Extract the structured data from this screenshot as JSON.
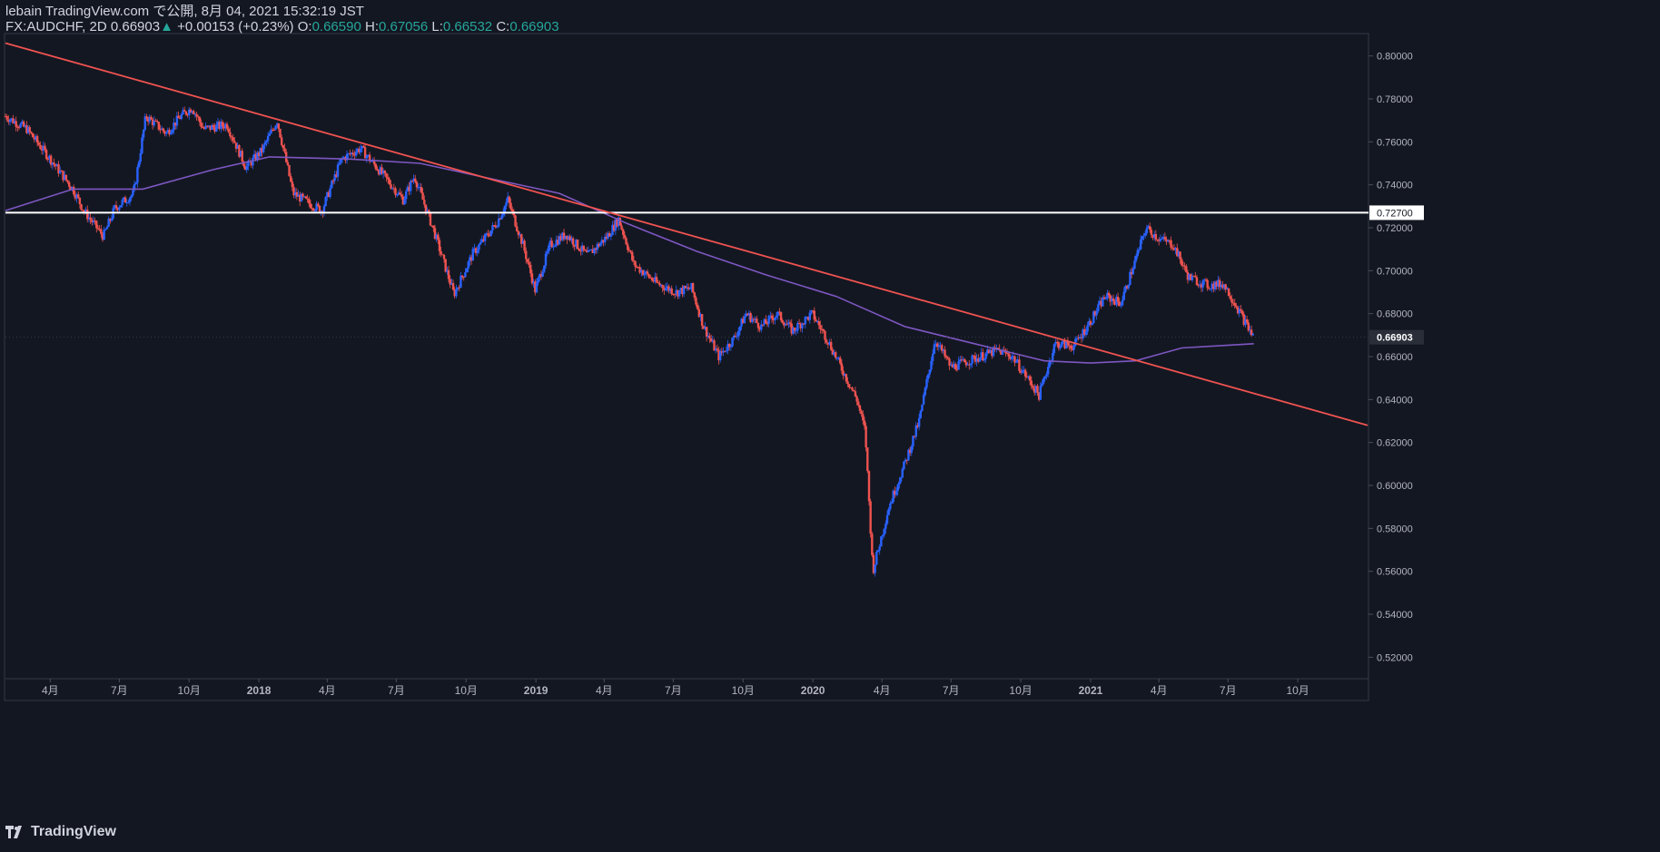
{
  "header": {
    "publisher": "lebain TradingView.com で公開, 8月 04, 2021 15:32:19 JST",
    "symbol": "FX:AUDCHF, 2D",
    "last": "0.66903",
    "change": "+0.00153 (+0.23%)",
    "o_label": "O:",
    "o": "0.66590",
    "h_label": "H:",
    "h": "0.67056",
    "l_label": "L:",
    "l": "0.66532",
    "c_label": "C:",
    "c": "0.66903",
    "up_color": "#26a69a"
  },
  "footer": {
    "brand": "TradingView",
    "icon": "tradingview-logo-icon"
  },
  "chart_data": {
    "type": "candlestick",
    "symbol": "FX:AUDCHF",
    "interval": "2D",
    "ylim": [
      0.51,
      0.81
    ],
    "x_range": [
      "2017-02-01",
      "2022-01-01"
    ],
    "y_ticks": [
      "0.80000",
      "0.78000",
      "0.76000",
      "0.74000",
      "0.72000",
      "0.70000",
      "0.68000",
      "0.66000",
      "0.64000",
      "0.62000",
      "0.60000",
      "0.58000",
      "0.56000",
      "0.54000",
      "0.52000"
    ],
    "x_ticks": [
      {
        "date": "2017-04-01",
        "label": "4月"
      },
      {
        "date": "2017-07-01",
        "label": "7月"
      },
      {
        "date": "2017-10-01",
        "label": "10月"
      },
      {
        "date": "2018-01-01",
        "label": "2018"
      },
      {
        "date": "2018-04-01",
        "label": "4月"
      },
      {
        "date": "2018-07-01",
        "label": "7月"
      },
      {
        "date": "2018-10-01",
        "label": "10月"
      },
      {
        "date": "2019-01-01",
        "label": "2019"
      },
      {
        "date": "2019-04-01",
        "label": "4月"
      },
      {
        "date": "2019-07-01",
        "label": "7月"
      },
      {
        "date": "2019-10-01",
        "label": "10月"
      },
      {
        "date": "2020-01-01",
        "label": "2020"
      },
      {
        "date": "2020-04-01",
        "label": "4月"
      },
      {
        "date": "2020-07-01",
        "label": "7月"
      },
      {
        "date": "2020-10-01",
        "label": "10月"
      },
      {
        "date": "2021-01-01",
        "label": "2021"
      },
      {
        "date": "2021-04-01",
        "label": "4月"
      },
      {
        "date": "2021-07-01",
        "label": "7月"
      },
      {
        "date": "2021-10-01",
        "label": "10月"
      }
    ],
    "close_path": [
      [
        "2017-02-01",
        0.772
      ],
      [
        "2017-03-01",
        0.766
      ],
      [
        "2017-04-01",
        0.752
      ],
      [
        "2017-05-01",
        0.738
      ],
      [
        "2017-05-15",
        0.728
      ],
      [
        "2017-06-10",
        0.716
      ],
      [
        "2017-06-25",
        0.729
      ],
      [
        "2017-07-20",
        0.736
      ],
      [
        "2017-08-05",
        0.772
      ],
      [
        "2017-09-01",
        0.764
      ],
      [
        "2017-09-20",
        0.772
      ],
      [
        "2017-10-05",
        0.776
      ],
      [
        "2017-10-20",
        0.766
      ],
      [
        "2017-11-20",
        0.768
      ],
      [
        "2017-12-15",
        0.748
      ],
      [
        "2018-01-05",
        0.756
      ],
      [
        "2018-01-25",
        0.77
      ],
      [
        "2018-02-15",
        0.736
      ],
      [
        "2018-03-10",
        0.731
      ],
      [
        "2018-03-25",
        0.728
      ],
      [
        "2018-04-20",
        0.752
      ],
      [
        "2018-05-15",
        0.757
      ],
      [
        "2018-06-15",
        0.744
      ],
      [
        "2018-07-10",
        0.733
      ],
      [
        "2018-07-25",
        0.744
      ],
      [
        "2018-08-20",
        0.718
      ],
      [
        "2018-09-15",
        0.689
      ],
      [
        "2018-10-10",
        0.708
      ],
      [
        "2018-11-10",
        0.722
      ],
      [
        "2018-11-25",
        0.733
      ],
      [
        "2018-12-15",
        0.712
      ],
      [
        "2018-12-31",
        0.691
      ],
      [
        "2019-01-20",
        0.712
      ],
      [
        "2019-02-10",
        0.717
      ],
      [
        "2019-03-10",
        0.707
      ],
      [
        "2019-04-05",
        0.716
      ],
      [
        "2019-04-20",
        0.724
      ],
      [
        "2019-05-10",
        0.703
      ],
      [
        "2019-06-10",
        0.694
      ],
      [
        "2019-07-05",
        0.69
      ],
      [
        "2019-07-25",
        0.692
      ],
      [
        "2019-08-10",
        0.674
      ],
      [
        "2019-08-30",
        0.66
      ],
      [
        "2019-09-20",
        0.669
      ],
      [
        "2019-10-05",
        0.68
      ],
      [
        "2019-10-25",
        0.674
      ],
      [
        "2019-11-15",
        0.68
      ],
      [
        "2019-12-05",
        0.672
      ],
      [
        "2019-12-31",
        0.68
      ],
      [
        "2020-01-20",
        0.668
      ],
      [
        "2020-02-10",
        0.653
      ],
      [
        "2020-02-28",
        0.64
      ],
      [
        "2020-03-10",
        0.625
      ],
      [
        "2020-03-20",
        0.56
      ],
      [
        "2020-04-10",
        0.59
      ],
      [
        "2020-05-01",
        0.61
      ],
      [
        "2020-05-20",
        0.63
      ],
      [
        "2020-06-10",
        0.668
      ],
      [
        "2020-07-01",
        0.655
      ],
      [
        "2020-08-01",
        0.659
      ],
      [
        "2020-09-01",
        0.663
      ],
      [
        "2020-09-20",
        0.66
      ],
      [
        "2020-10-10",
        0.65
      ],
      [
        "2020-10-25",
        0.642
      ],
      [
        "2020-11-15",
        0.666
      ],
      [
        "2020-12-10",
        0.665
      ],
      [
        "2020-12-31",
        0.676
      ],
      [
        "2021-01-20",
        0.688
      ],
      [
        "2021-02-10",
        0.685
      ],
      [
        "2021-03-01",
        0.705
      ],
      [
        "2021-03-15",
        0.72
      ],
      [
        "2021-04-01",
        0.715
      ],
      [
        "2021-04-20",
        0.712
      ],
      [
        "2021-05-10",
        0.697
      ],
      [
        "2021-06-05",
        0.693
      ],
      [
        "2021-06-25",
        0.694
      ],
      [
        "2021-07-10",
        0.685
      ],
      [
        "2021-07-25",
        0.675
      ],
      [
        "2021-08-04",
        0.669
      ]
    ],
    "moving_average": [
      [
        "2017-02-01",
        0.728
      ],
      [
        "2017-05-01",
        0.738
      ],
      [
        "2017-08-01",
        0.738
      ],
      [
        "2017-11-01",
        0.747
      ],
      [
        "2018-01-15",
        0.753
      ],
      [
        "2018-05-01",
        0.752
      ],
      [
        "2018-08-01",
        0.75
      ],
      [
        "2018-11-01",
        0.743
      ],
      [
        "2019-02-01",
        0.736
      ],
      [
        "2019-05-01",
        0.722
      ],
      [
        "2019-08-01",
        0.709
      ],
      [
        "2019-11-01",
        0.698
      ],
      [
        "2020-02-01",
        0.688
      ],
      [
        "2020-05-01",
        0.674
      ],
      [
        "2020-08-01",
        0.666
      ],
      [
        "2020-11-01",
        0.658
      ],
      [
        "2021-01-01",
        0.657
      ],
      [
        "2021-03-01",
        0.658
      ],
      [
        "2021-05-01",
        0.664
      ],
      [
        "2021-08-04",
        0.666
      ]
    ],
    "trendline": {
      "start": [
        "2017-02-01",
        0.806
      ],
      "end": [
        "2022-01-01",
        0.628
      ],
      "color": "#ef5350"
    },
    "horizontal_line": {
      "value": 0.727,
      "label": "0.72700",
      "color": "#ffffff"
    },
    "last_price": {
      "value": 0.66903,
      "label": "0.66903"
    },
    "colors": {
      "up": "#2962ff",
      "down": "#ef5350",
      "ma": "#7e57c2",
      "grid": "#1e222d",
      "text": "#b2b5be"
    }
  }
}
